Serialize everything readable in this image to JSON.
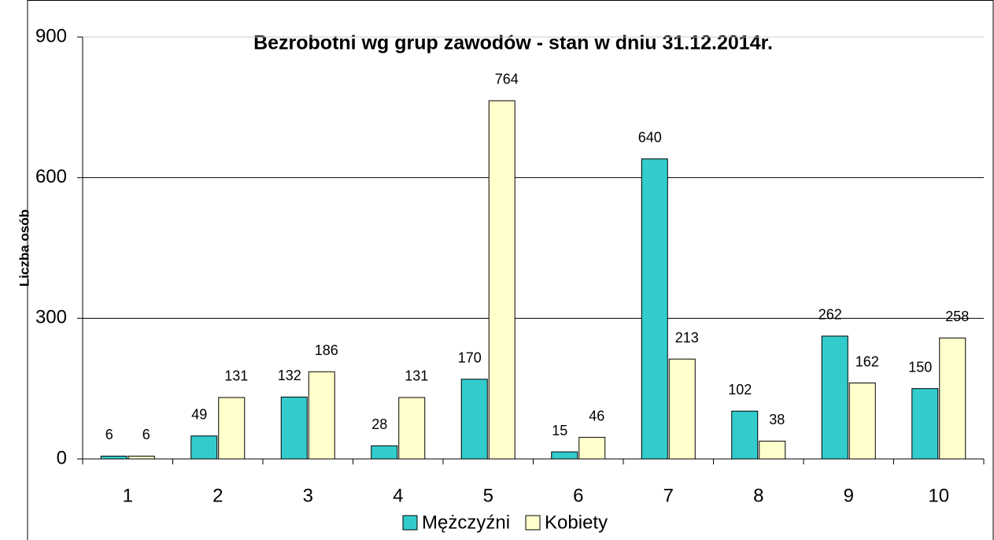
{
  "chart_data": {
    "type": "bar",
    "title": "Bezrobotni wg grup zawodów - stan w dniu 31.12.2014r.",
    "y_label": "Liczba osób",
    "categories": [
      "1",
      "2",
      "3",
      "4",
      "5",
      "6",
      "7",
      "8",
      "9",
      "10"
    ],
    "series": [
      {
        "name": "Mężczyźni",
        "color": "#33cccc",
        "values": [
          6,
          49,
          132,
          28,
          170,
          15,
          640,
          102,
          262,
          150
        ]
      },
      {
        "name": "Kobiety",
        "color": "#ffffcc",
        "values": [
          6,
          131,
          186,
          131,
          764,
          46,
          213,
          38,
          162,
          258
        ]
      }
    ],
    "ylim": [
      0,
      900
    ],
    "yticks": [
      0,
      300,
      600,
      900
    ],
    "grid": true,
    "legend": "bottom"
  }
}
